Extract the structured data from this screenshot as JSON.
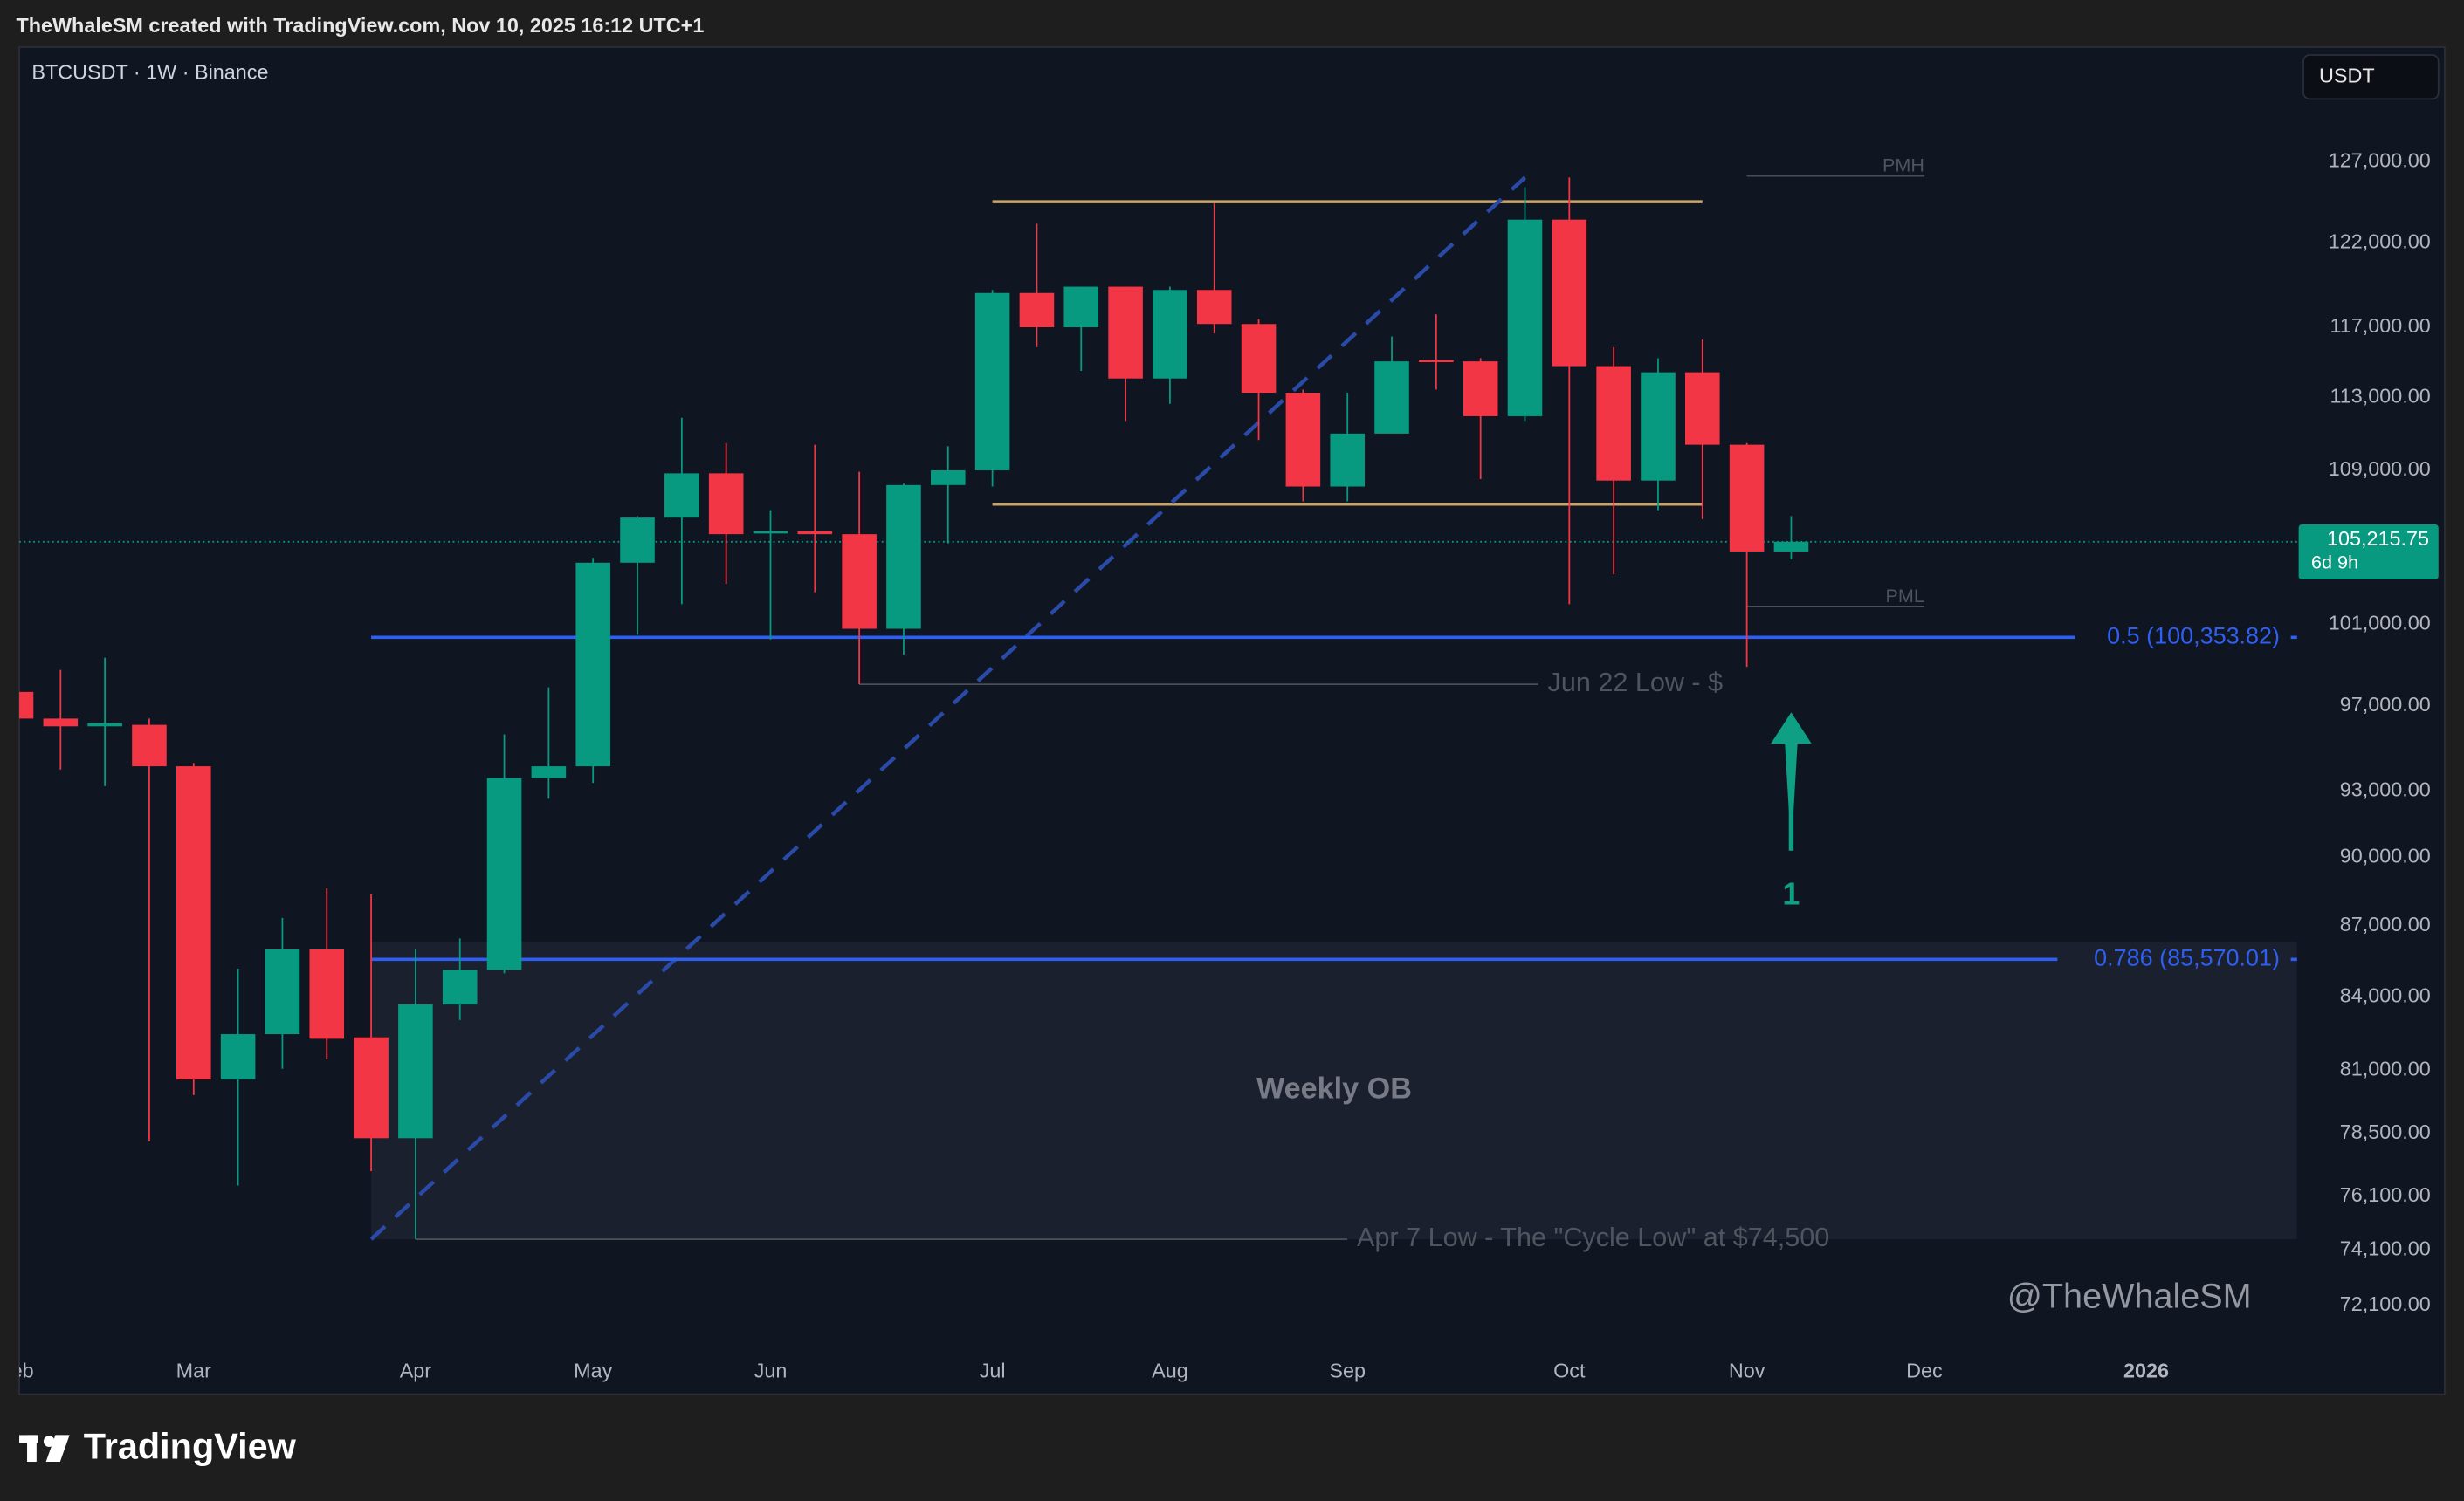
{
  "header": {
    "credit": "TheWhaleSM created with TradingView.com, Nov 10, 2025 16:12 UTC+1",
    "brand": "TradingView",
    "watermark": "@TheWhaleSM"
  },
  "chart_data": {
    "type": "candlestick",
    "title": "BTCUSDT · 1W · Binance",
    "currency": "USDT",
    "up_color": "#089981",
    "down_color": "#f23645",
    "open": [
      97680,
      96400,
      96030,
      96100,
      94150,
      80630,
      82460,
      85990,
      82330,
      78320,
      83680,
      85120,
      93600,
      94150,
      104130,
      106480,
      108840,
      105690,
      105770,
      105610,
      100780,
      108210,
      109000,
      119000,
      117000,
      119370,
      114070,
      119180,
      117190,
      113270,
      108130,
      111000,
      115130,
      115040,
      111960,
      123400,
      114770,
      108450,
      114420,
      110390,
      104710
    ],
    "high": [
      102450,
      98750,
      99350,
      96400,
      94300,
      85180,
      87340,
      88640,
      88360,
      85990,
      86460,
      95650,
      97900,
      104380,
      106560,
      111870,
      110480,
      106870,
      110390,
      108920,
      108290,
      110310,
      119180,
      123150,
      119370,
      119370,
      119370,
      124400,
      117470,
      113450,
      113270,
      116470,
      117750,
      115220,
      125400,
      126000,
      115850,
      115220,
      116290,
      110480,
      106560
    ],
    "low": [
      91100,
      94000,
      93230,
      78200,
      80010,
      76510,
      81060,
      81430,
      77050,
      74500,
      83040,
      84980,
      92650,
      93380,
      100480,
      102010,
      103040,
      100250,
      102620,
      98050,
      99500,
      105130,
      108130,
      115850,
      114500,
      111700,
      112650,
      116640,
      110650,
      107340,
      107340,
      111000,
      113450,
      108530,
      111700,
      102010,
      103540,
      106870,
      106400,
      98900,
      104300
    ],
    "close": [
      96400,
      96030,
      96180,
      94150,
      80630,
      82460,
      85990,
      82270,
      78320,
      83680,
      85120,
      93600,
      94150,
      104130,
      106480,
      108840,
      105610,
      105770,
      105610,
      100780,
      108210,
      109000,
      119000,
      117000,
      119370,
      114070,
      119180,
      117190,
      113270,
      108130,
      111000,
      115040,
      115040,
      111960,
      123400,
      114770,
      108450,
      114420,
      110390,
      104710,
      105215.75
    ],
    "xlim": [
      0.07,
      51.4
    ],
    "xticks": [
      {
        "value": 0,
        "label": "Feb"
      },
      {
        "value": 4,
        "label": "Mar"
      },
      {
        "value": 9,
        "label": "Apr"
      },
      {
        "value": 13,
        "label": "May"
      },
      {
        "value": 17,
        "label": "Jun"
      },
      {
        "value": 22,
        "label": "Jul"
      },
      {
        "value": 26,
        "label": "Aug"
      },
      {
        "value": 30,
        "label": "Sep"
      },
      {
        "value": 35,
        "label": "Oct"
      },
      {
        "value": 39,
        "label": "Nov"
      },
      {
        "value": 43,
        "label": "Dec"
      },
      {
        "value": 48,
        "label": "2026"
      }
    ],
    "ylim": [
      69000,
      134400
    ],
    "log_scale": true,
    "yticks": [
      {
        "value": 72100,
        "label": "72,100.00"
      },
      {
        "value": 74100,
        "label": "74,100.00"
      },
      {
        "value": 76100,
        "label": "76,100.00"
      },
      {
        "value": 78500,
        "label": "78,500.00"
      },
      {
        "value": 81000,
        "label": "81,000.00"
      },
      {
        "value": 84000,
        "label": "84,000.00"
      },
      {
        "value": 87000,
        "label": "87,000.00"
      },
      {
        "value": 90000,
        "label": "90,000.00"
      },
      {
        "value": 93000,
        "label": "93,000.00"
      },
      {
        "value": 97000,
        "label": "97,000.00"
      },
      {
        "value": 101000,
        "label": "101,000.00"
      },
      {
        "value": 109000,
        "label": "109,000.00"
      },
      {
        "value": 113000,
        "label": "113,000.00"
      },
      {
        "value": 117000,
        "label": "117,000.00"
      },
      {
        "value": 122000,
        "label": "122,000.00"
      },
      {
        "value": 127000,
        "label": "127,000.00"
      }
    ],
    "last_price": {
      "value": 105215.75,
      "label": "105,215.75",
      "countdown": "6d 9h",
      "color": "#089981"
    },
    "levels": [
      {
        "value": 100353.82,
        "label": "0.5 (100,353.82)",
        "from": 8,
        "to": 46.4,
        "color": "#2f5ff0"
      },
      {
        "value": 85570.01,
        "label": "0.786 (85,570.01)",
        "from": 8,
        "to": 46.0,
        "color": "#2f5ff0"
      }
    ],
    "range": {
      "high": 124500,
      "low": 107190,
      "from": 22,
      "to": 38,
      "color": "#c9a46a"
    },
    "markers": [
      {
        "text": "PMH",
        "value": 126100,
        "from": 39,
        "to": 43
      },
      {
        "text": "PML",
        "value": 101900,
        "from": 39,
        "to": 43
      }
    ],
    "lows": [
      {
        "text": "Jun 22 Low - $",
        "value": 98050,
        "from": 19,
        "to": 34.3
      },
      {
        "text": "Apr 7 Low - The \"Cycle Low\" at $74,500",
        "value": 74500,
        "from": 9,
        "to": 30
      }
    ],
    "zone": {
      "text": "Weekly OB",
      "top": 86320,
      "bottom": 74500,
      "from": 8,
      "to": 51.4
    },
    "trendline": {
      "from": [
        8,
        74500
      ],
      "to": [
        34,
        126000
      ],
      "color": "#2a4aa8"
    },
    "arrow": {
      "text": "1",
      "x": 40,
      "from": 90300,
      "to": 96700,
      "color": "#0e9f84"
    }
  }
}
